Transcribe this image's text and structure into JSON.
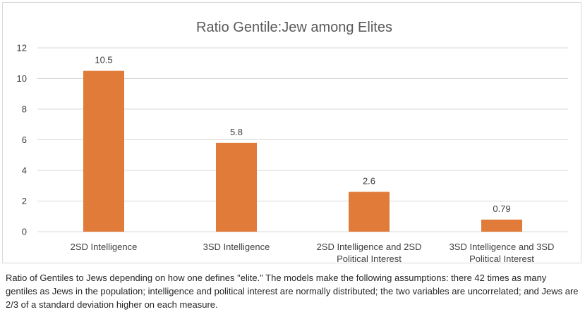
{
  "chart_data": {
    "type": "bar",
    "title": "Ratio Gentile:Jew among Elites",
    "categories": [
      [
        "2SD Intelligence"
      ],
      [
        "3SD Intelligence"
      ],
      [
        "2SD Intelligence and 2SD",
        "Political Interest"
      ],
      [
        "3SD Intelligence and 3SD",
        "Political Interest"
      ]
    ],
    "values": [
      10.5,
      5.8,
      2.6,
      0.79
    ],
    "data_labels": [
      "10.5",
      "5.8",
      "2.6",
      "0.79"
    ],
    "ylim": [
      0,
      12
    ],
    "yticks": [
      0,
      2,
      4,
      6,
      8,
      10,
      12
    ],
    "grid": true,
    "bar_color": "#E07B39",
    "xlabel": "",
    "ylabel": ""
  },
  "caption": "Ratio of Gentiles to Jews depending on how one defines \"elite.\" The models make the following assumptions: there 42 times as many gentiles as Jews in the population; intelligence and political interest are normally distributed; the two variables are uncorrelated; and Jews are 2/3 of a standard deviation higher on each measure."
}
